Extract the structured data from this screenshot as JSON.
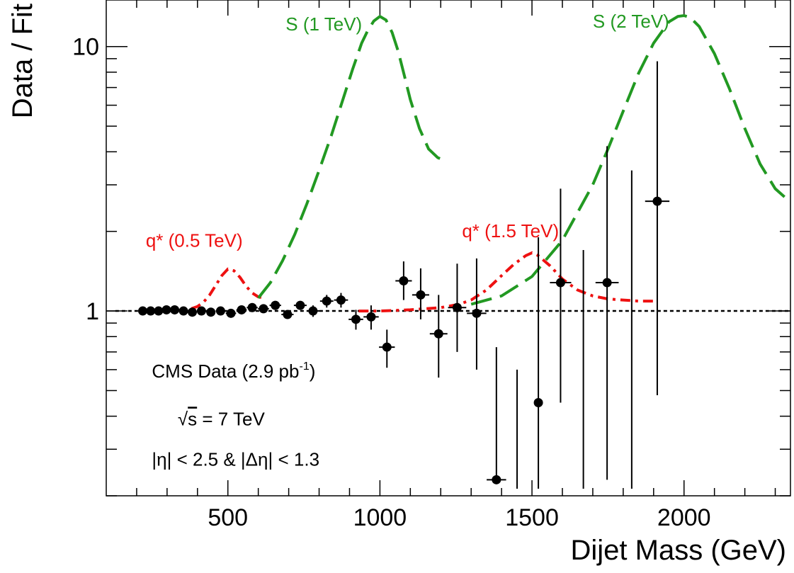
{
  "chart_data": {
    "type": "scatter",
    "title": "",
    "xlabel": "Dijet Mass (GeV)",
    "ylabel": "Data / Fit",
    "xlim": [
      100,
      2350
    ],
    "ylim": [
      0.2,
      15
    ],
    "yscale": "log",
    "grid": false,
    "x_ticks": [
      500,
      1000,
      1500,
      2000
    ],
    "x_tick_labels": [
      "500",
      "1000",
      "1500",
      "2000"
    ],
    "y_ticks": [
      1,
      10
    ],
    "y_tick_labels": [
      "1",
      "10"
    ],
    "reference_line": {
      "y": 1,
      "color": "#000000",
      "style": "dotted"
    },
    "points": [
      {
        "x": 220,
        "y": 1.0,
        "err_lo": 0,
        "err_hi": 0,
        "xerr": 12
      },
      {
        "x": 246,
        "y": 1.0,
        "err_lo": 0,
        "err_hi": 0,
        "xerr": 12
      },
      {
        "x": 272,
        "y": 1.0,
        "err_lo": 0,
        "err_hi": 0,
        "xerr": 12
      },
      {
        "x": 298,
        "y": 1.01,
        "err_lo": 0,
        "err_hi": 0,
        "xerr": 13
      },
      {
        "x": 325,
        "y": 1.01,
        "err_lo": 0,
        "err_hi": 0,
        "xerr": 13
      },
      {
        "x": 354,
        "y": 1.0,
        "err_lo": 0,
        "err_hi": 0,
        "xerr": 14
      },
      {
        "x": 383,
        "y": 0.99,
        "err_lo": 0.01,
        "err_hi": 0.01,
        "xerr": 14
      },
      {
        "x": 413,
        "y": 1.0,
        "err_lo": 0.01,
        "err_hi": 0.01,
        "xerr": 15
      },
      {
        "x": 444,
        "y": 0.99,
        "err_lo": 0.01,
        "err_hi": 0.01,
        "xerr": 15
      },
      {
        "x": 476,
        "y": 1.0,
        "err_lo": 0.01,
        "err_hi": 0.01,
        "xerr": 16
      },
      {
        "x": 510,
        "y": 0.98,
        "err_lo": 0.02,
        "err_hi": 0.02,
        "xerr": 17
      },
      {
        "x": 545,
        "y": 1.01,
        "err_lo": 0.02,
        "err_hi": 0.02,
        "xerr": 17
      },
      {
        "x": 580,
        "y": 1.03,
        "err_lo": 0.02,
        "err_hi": 0.02,
        "xerr": 18
      },
      {
        "x": 617,
        "y": 1.02,
        "err_lo": 0.02,
        "err_hi": 0.02,
        "xerr": 18
      },
      {
        "x": 656,
        "y": 1.05,
        "err_lo": 0.03,
        "err_hi": 0.03,
        "xerr": 19
      },
      {
        "x": 696,
        "y": 0.97,
        "err_lo": 0.03,
        "err_hi": 0.03,
        "xerr": 20
      },
      {
        "x": 738,
        "y": 1.05,
        "err_lo": 0.04,
        "err_hi": 0.04,
        "xerr": 21
      },
      {
        "x": 780,
        "y": 1.0,
        "err_lo": 0.05,
        "err_hi": 0.05,
        "xerr": 21
      },
      {
        "x": 825,
        "y": 1.09,
        "err_lo": 0.06,
        "err_hi": 0.06,
        "xerr": 22
      },
      {
        "x": 872,
        "y": 1.1,
        "err_lo": 0.07,
        "err_hi": 0.07,
        "xerr": 23
      },
      {
        "x": 921,
        "y": 0.93,
        "err_lo": 0.08,
        "err_hi": 0.08,
        "xerr": 24
      },
      {
        "x": 971,
        "y": 0.95,
        "err_lo": 0.1,
        "err_hi": 0.1,
        "xerr": 25
      },
      {
        "x": 1023,
        "y": 0.73,
        "err_lo": 0.12,
        "err_hi": 0.12,
        "xerr": 26
      },
      {
        "x": 1078,
        "y": 1.3,
        "err_lo": 0.2,
        "err_hi": 0.24,
        "xerr": 27
      },
      {
        "x": 1134,
        "y": 1.15,
        "err_lo": 0.22,
        "err_hi": 0.3,
        "xerr": 28
      },
      {
        "x": 1193,
        "y": 0.82,
        "err_lo": 0.26,
        "err_hi": 0.33,
        "xerr": 29
      },
      {
        "x": 1254,
        "y": 1.03,
        "err_lo": 0.33,
        "err_hi": 0.48,
        "xerr": 30
      },
      {
        "x": 1318,
        "y": 0.98,
        "err_lo": 0.38,
        "err_hi": 0.6,
        "xerr": 32
      },
      {
        "x": 1383,
        "y": 0.23,
        "err_lo": 0,
        "err_hi": 0.5,
        "xerr": 32
      },
      {
        "x": 1451,
        "y": null,
        "err_lo": 0,
        "err_hi": 0.6,
        "xerr": 0
      },
      {
        "x": 1521,
        "y": 0.45,
        "err_lo": 0.45,
        "err_hi": 1.45,
        "xerr": 0
      },
      {
        "x": 1594,
        "y": 1.28,
        "err_lo": 0.83,
        "err_hi": 1.62,
        "xerr": 35
      },
      {
        "x": 1669,
        "y": null,
        "err_lo": 0,
        "err_hi": 1.7,
        "xerr": 0
      },
      {
        "x": 1747,
        "y": 1.28,
        "err_lo": 1.05,
        "err_hi": 2.92,
        "xerr": 38
      },
      {
        "x": 1828,
        "y": null,
        "err_lo": 0,
        "err_hi": 3.4,
        "xerr": 0
      },
      {
        "x": 1912,
        "y": 2.6,
        "err_lo": 2.12,
        "err_hi": 6.2,
        "xerr": 40
      }
    ],
    "curves": [
      {
        "label": "q* (0.5 TeV)",
        "color": "#ee1111",
        "style": "dashdot",
        "x": [
          380,
          400,
          420,
          440,
          460,
          480,
          500,
          520,
          540,
          560,
          580,
          600,
          620
        ],
        "y": [
          1.02,
          1.04,
          1.08,
          1.15,
          1.25,
          1.36,
          1.44,
          1.42,
          1.34,
          1.24,
          1.17,
          1.13,
          1.12
        ]
      },
      {
        "label": "S (1 TeV)",
        "color": "#229922",
        "style": "dashed",
        "x": [
          600,
          640,
          680,
          720,
          760,
          800,
          840,
          880,
          910,
          940,
          960,
          980,
          1000,
          1020,
          1040,
          1060,
          1080,
          1100,
          1130,
          1160,
          1190,
          1210
        ],
        "y": [
          1.12,
          1.28,
          1.55,
          1.95,
          2.55,
          3.4,
          4.6,
          6.4,
          8.2,
          10.3,
          11.5,
          12.5,
          13.0,
          12.6,
          11.3,
          9.6,
          7.8,
          6.3,
          4.9,
          4.1,
          3.8,
          3.72
        ]
      },
      {
        "label": "q* (1.5 TeV)",
        "color": "#ee1111",
        "style": "dashdot",
        "x": [
          930,
          1000,
          1100,
          1200,
          1260,
          1300,
          1350,
          1400,
          1440,
          1480,
          1500,
          1520,
          1560,
          1600,
          1650,
          1700,
          1750,
          1800,
          1850,
          1900
        ],
        "y": [
          1.0,
          1.0,
          1.01,
          1.03,
          1.06,
          1.1,
          1.2,
          1.36,
          1.5,
          1.62,
          1.66,
          1.62,
          1.48,
          1.32,
          1.2,
          1.14,
          1.11,
          1.1,
          1.09,
          1.09
        ]
      },
      {
        "label": "S (2 TeV)",
        "color": "#229922",
        "style": "dashed",
        "x": [
          1300,
          1400,
          1500,
          1600,
          1700,
          1750,
          1800,
          1850,
          1900,
          1950,
          1980,
          2000,
          2020,
          2050,
          2100,
          2150,
          2200,
          2250,
          2300,
          2350
        ],
        "y": [
          1.06,
          1.14,
          1.35,
          1.85,
          3.0,
          4.1,
          5.7,
          7.9,
          10.3,
          12.4,
          13.0,
          13.1,
          12.9,
          11.9,
          9.4,
          6.9,
          4.9,
          3.6,
          2.9,
          2.58
        ]
      }
    ],
    "curve_labels": [
      {
        "text": "S (1 TeV)",
        "x": 690,
        "y": 11.5,
        "color": "#229922"
      },
      {
        "text": "S (2 TeV)",
        "x": 1700,
        "y": 11.8,
        "color": "#229922"
      },
      {
        "text": "q* (0.5 TeV)",
        "x": 230,
        "y": 1.75,
        "color": "#ee1111"
      },
      {
        "text": "q* (1.5 TeV)",
        "x": 1270,
        "y": 1.9,
        "color": "#ee1111"
      }
    ],
    "annotations": [
      {
        "text": "CMS Data (2.9 pb",
        "sup": "-1",
        "tail": ")",
        "x": 250,
        "y": 0.56
      },
      {
        "text": "s = 7 TeV",
        "sqrt": true,
        "x": 335,
        "y": 0.37
      },
      {
        "text": "|η| < 2.5 & |Δη| < 1.3",
        "x": 250,
        "y": 0.26
      }
    ]
  }
}
